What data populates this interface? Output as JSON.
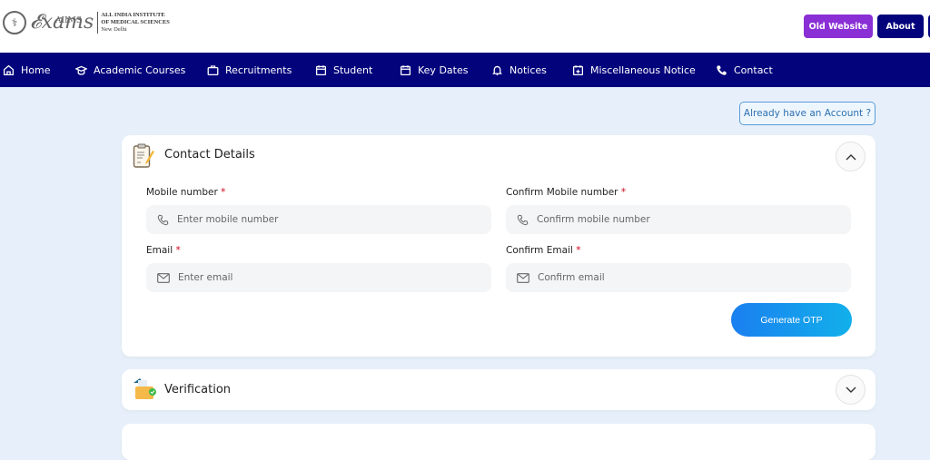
{
  "header": {
    "logo_text": "AIIMS Exams",
    "institute_lines": [
      "ALL INDIA INSTITUTE",
      "OF MEDICAL SCIENCES",
      "New Delhi"
    ],
    "old_website": "Old Website",
    "about": "About",
    "colors": {
      "old_website": "#8a2fd6",
      "about": "#03037c"
    }
  },
  "nav": {
    "items": [
      {
        "label": "Home",
        "icon": "home-icon"
      },
      {
        "label": "Academic Courses",
        "icon": "graduation-cap-icon"
      },
      {
        "label": "Recruitments",
        "icon": "briefcase-icon"
      },
      {
        "label": "Student",
        "icon": "calendar-icon"
      },
      {
        "label": "Key Dates",
        "icon": "calendar-icon"
      },
      {
        "label": "Notices",
        "icon": "bell-icon"
      },
      {
        "label": "Miscellaneous Notice",
        "icon": "calendar-plus-icon"
      },
      {
        "label": "Contact",
        "icon": "phone-icon"
      }
    ]
  },
  "already_account": "Already have an Account ?",
  "contact": {
    "title": "Contact Details",
    "mobile_label": "Mobile number",
    "mobile_placeholder": "Enter mobile number",
    "confirm_mobile_label": "Confirm Mobile number",
    "confirm_mobile_placeholder": "Confirm mobile number",
    "email_label": "Email",
    "email_placeholder": "Enter email",
    "confirm_email_label": "Confirm Email",
    "confirm_email_placeholder": "Confirm email",
    "required_mark": "*",
    "generate_otp": "Generate OTP"
  },
  "verification": {
    "title": "Verification"
  }
}
